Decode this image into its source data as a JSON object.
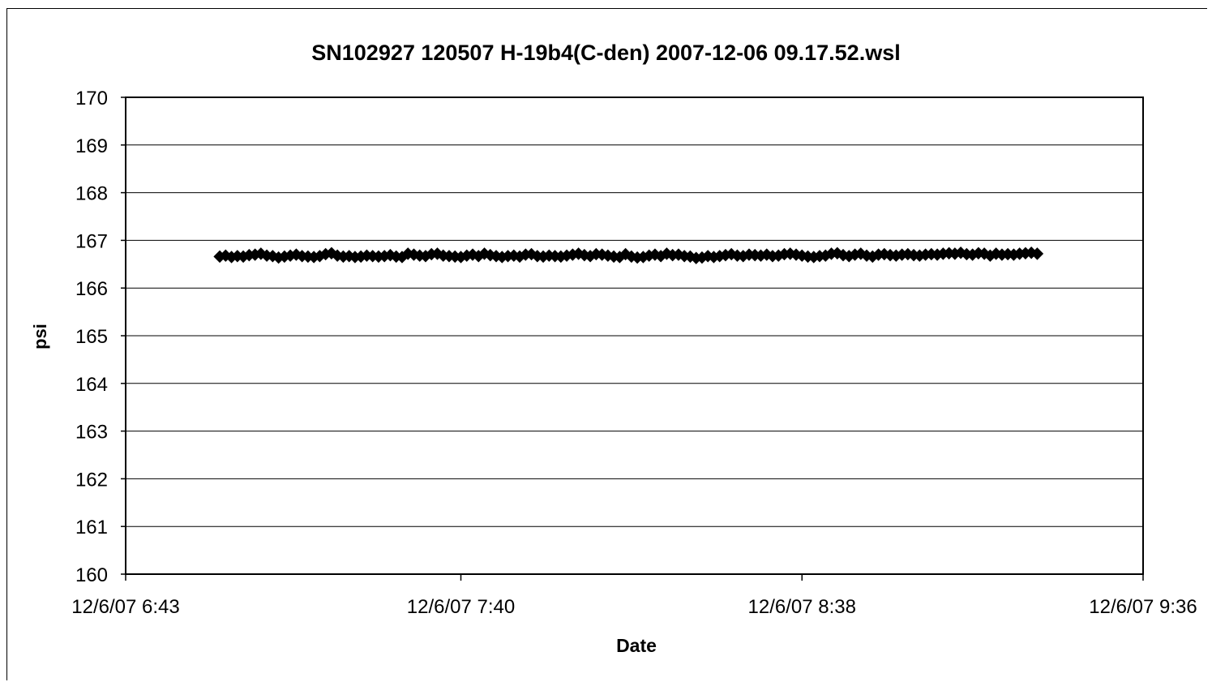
{
  "chart_data": {
    "type": "scatter",
    "title": "SN102927 120507 H-19b4(C-den) 2007-12-06 09.17.52.wsl",
    "xlabel": "Date",
    "ylabel": "psi",
    "ylim": [
      160,
      170
    ],
    "yticks": [
      "160",
      "161",
      "162",
      "163",
      "164",
      "165",
      "166",
      "167",
      "168",
      "169",
      "170"
    ],
    "xlim": [
      "12/6/07 6:43",
      "12/6/07 9:36"
    ],
    "xticks": [
      "12/6/07 6:43",
      "12/6/07 7:40",
      "12/6/07 8:38",
      "12/6/07 9:36"
    ],
    "grid": "horizontal",
    "marker": "diamond",
    "marker_color": "#000000",
    "series": [
      {
        "x_start": "12/6/07 6:59",
        "x_end": "12/6/07 9:17",
        "interval_minutes": 1,
        "values": [
          166.66,
          166.68,
          166.65,
          166.67,
          166.66,
          166.69,
          166.7,
          166.72,
          166.68,
          166.67,
          166.64,
          166.66,
          166.68,
          166.7,
          166.67,
          166.66,
          166.65,
          166.67,
          166.71,
          166.73,
          166.68,
          166.66,
          166.67,
          166.65,
          166.66,
          166.68,
          166.67,
          166.66,
          166.67,
          166.69,
          166.66,
          166.65,
          166.72,
          166.7,
          166.68,
          166.67,
          166.71,
          166.72,
          166.68,
          166.67,
          166.66,
          166.65,
          166.68,
          166.7,
          166.67,
          166.72,
          166.69,
          166.67,
          166.65,
          166.67,
          166.68,
          166.66,
          166.7,
          166.71,
          166.67,
          166.66,
          166.68,
          166.67,
          166.66,
          166.68,
          166.7,
          166.72,
          166.69,
          166.67,
          166.71,
          166.7,
          166.68,
          166.66,
          166.65,
          166.71,
          166.66,
          166.64,
          166.65,
          166.68,
          166.7,
          166.67,
          166.72,
          166.69,
          166.7,
          166.67,
          166.66,
          166.63,
          166.64,
          166.67,
          166.65,
          166.67,
          166.69,
          166.71,
          166.68,
          166.67,
          166.7,
          166.69,
          166.68,
          166.7,
          166.67,
          166.68,
          166.71,
          166.72,
          166.7,
          166.68,
          166.66,
          166.65,
          166.67,
          166.68,
          166.72,
          166.73,
          166.69,
          166.67,
          166.7,
          166.72,
          166.68,
          166.66,
          166.7,
          166.71,
          166.69,
          166.68,
          166.7,
          166.71,
          166.69,
          166.68,
          166.7,
          166.71,
          166.7,
          166.72,
          166.73,
          166.72,
          166.74,
          166.71,
          166.7,
          166.73,
          166.72,
          166.68,
          166.72,
          166.7,
          166.71,
          166.7,
          166.72,
          166.73,
          166.74,
          166.72
        ]
      }
    ]
  }
}
